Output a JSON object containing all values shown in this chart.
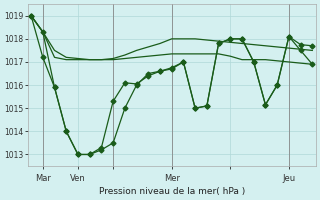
{
  "background_color": "#d4f0f0",
  "grid_color": "#b0d8d8",
  "line_color": "#1a5c1a",
  "marker_color": "#1a5c1a",
  "xlabel": "Pression niveau de la mer( hPa )",
  "x_vline_positions": [
    1,
    7,
    12,
    22
  ],
  "ylim": [
    1012.5,
    1019.5
  ],
  "yticks": [
    1013,
    1014,
    1015,
    1016,
    1017,
    1018,
    1019
  ],
  "xlim": [
    -0.3,
    24.3
  ],
  "x_tick_positions": [
    1,
    4,
    7,
    12,
    17,
    22
  ],
  "x_tick_labels": [
    "Mar",
    "Ven",
    "",
    "Mer",
    "",
    "Jeu"
  ],
  "series1_x": [
    0,
    1,
    2,
    3,
    4,
    5,
    6,
    7,
    8,
    9,
    10,
    11,
    12,
    13,
    14,
    15,
    16,
    17,
    18,
    19,
    20,
    21,
    22,
    23,
    24
  ],
  "series1_y": [
    1019.0,
    1018.3,
    1017.2,
    1017.1,
    1017.1,
    1017.1,
    1017.1,
    1017.1,
    1017.15,
    1017.2,
    1017.25,
    1017.3,
    1017.35,
    1017.35,
    1017.35,
    1017.35,
    1017.35,
    1017.25,
    1017.1,
    1017.1,
    1017.1,
    1017.05,
    1017.0,
    1016.95,
    1016.9
  ],
  "series2_x": [
    0,
    1,
    2,
    3,
    4,
    5,
    6,
    7,
    8,
    9,
    10,
    11,
    12,
    13,
    14,
    15,
    16,
    17,
    18,
    19,
    20,
    21,
    22,
    23,
    24
  ],
  "series2_y": [
    1019.0,
    1018.3,
    1017.5,
    1017.2,
    1017.15,
    1017.1,
    1017.1,
    1017.15,
    1017.3,
    1017.5,
    1017.65,
    1017.8,
    1018.0,
    1018.0,
    1018.0,
    1017.95,
    1017.9,
    1017.85,
    1017.8,
    1017.75,
    1017.7,
    1017.65,
    1017.6,
    1017.55,
    1017.5
  ],
  "series3_x": [
    0,
    1,
    2,
    3,
    4,
    5,
    6,
    7,
    8,
    9,
    10,
    11,
    12,
    13,
    14,
    15,
    16,
    17,
    18,
    19,
    20,
    21,
    22,
    23,
    24
  ],
  "series3_y": [
    1019.0,
    1018.3,
    1015.9,
    1014.0,
    1013.0,
    1013.0,
    1013.3,
    1015.3,
    1016.1,
    1016.05,
    1016.4,
    1016.6,
    1016.75,
    1017.0,
    1015.0,
    1015.1,
    1017.8,
    1018.0,
    1018.0,
    1017.0,
    1015.15,
    1016.0,
    1018.1,
    1017.75,
    1017.7
  ],
  "series4_x": [
    0,
    1,
    2,
    3,
    4,
    5,
    6,
    7,
    8,
    9,
    10,
    11,
    12,
    13,
    14,
    15,
    16,
    17,
    18,
    19,
    20,
    21,
    22,
    23,
    24
  ],
  "series4_y": [
    1019.0,
    1017.2,
    1015.9,
    1014.0,
    1013.0,
    1013.0,
    1013.2,
    1013.5,
    1015.0,
    1016.0,
    1016.5,
    1016.6,
    1016.7,
    1017.0,
    1015.0,
    1015.1,
    1017.8,
    1018.0,
    1018.0,
    1017.0,
    1015.15,
    1016.0,
    1018.1,
    1017.5,
    1016.9
  ]
}
